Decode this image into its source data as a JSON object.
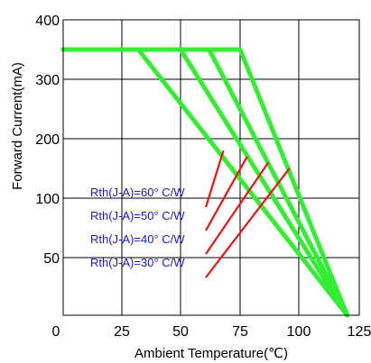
{
  "chart_data": {
    "type": "line",
    "title": "",
    "xlabel": "Ambient Temperature(℃)",
    "ylabel": "Forward Current(mA)",
    "grid": true,
    "x_ticks": [
      {
        "value": 0,
        "label": "0"
      },
      {
        "value": 25,
        "label": "25"
      },
      {
        "value": 50,
        "label": "50"
      },
      {
        "value": 75,
        "label": "75"
      },
      {
        "value": 100,
        "label": "100"
      },
      {
        "value": 125,
        "label": "125"
      }
    ],
    "y_ticks": [
      {
        "value": 50,
        "label": "50"
      },
      {
        "value": 100,
        "label": "100"
      },
      {
        "value": 200,
        "label": "200"
      },
      {
        "value": 300,
        "label": "300"
      },
      {
        "value": 400,
        "label": "400"
      }
    ],
    "line_color": "#33ee33",
    "annotation_text_color": "#1a1acc",
    "leader_color": "#ee1111",
    "series": [
      {
        "points": [
          [
            0,
            350
          ],
          [
            32,
            350
          ],
          [
            120,
            0
          ]
        ],
        "label": "Rth(J-A)=30° C/W",
        "callout_point": [
          96,
          150
        ]
      },
      {
        "points": [
          [
            0,
            350
          ],
          [
            50,
            350
          ],
          [
            120,
            0
          ]
        ],
        "label": "Rth(J-A)=40° C/W",
        "callout_point": [
          87,
          160
        ]
      },
      {
        "points": [
          [
            0,
            350
          ],
          [
            62,
            350
          ],
          [
            120,
            0
          ]
        ],
        "label": "Rth(J-A)=50° C/W",
        "callout_point": [
          78,
          170
        ]
      },
      {
        "points": [
          [
            0,
            350
          ],
          [
            75,
            350
          ],
          [
            120,
            0
          ]
        ],
        "label": "Rth(J-A)=60° C/W",
        "callout_point": [
          68,
          180
        ]
      }
    ]
  }
}
